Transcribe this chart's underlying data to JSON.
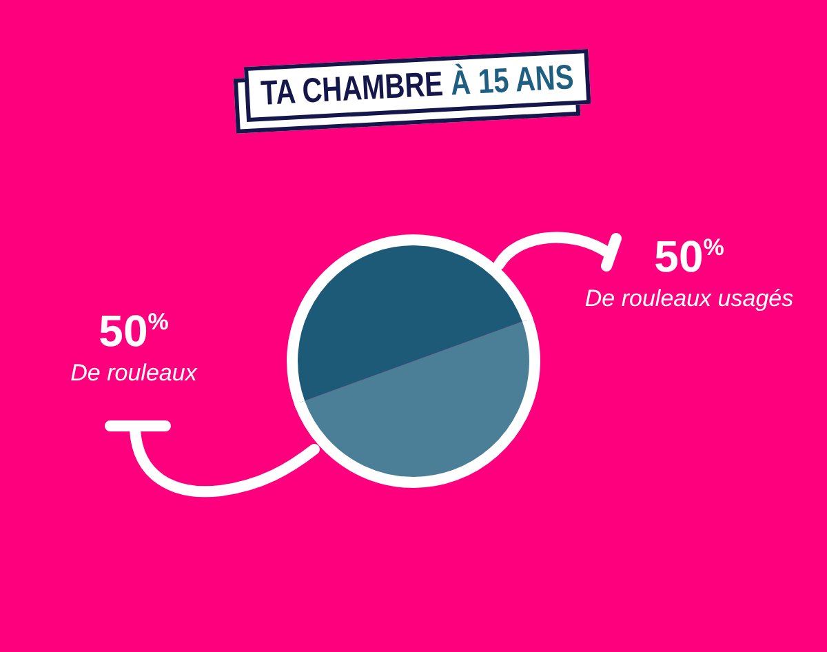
{
  "chart_data": {
    "type": "pie",
    "title": "TA CHAMBRE À 15 ANS",
    "categories": [
      "De rouleaux",
      "De rouleaux usagés"
    ],
    "values": [
      50,
      50
    ],
    "colors": [
      "#1c5a78",
      "#4a7f97"
    ],
    "value_labels": [
      "50$^{%}$",
      "50$^{%}$"
    ]
  }
}
